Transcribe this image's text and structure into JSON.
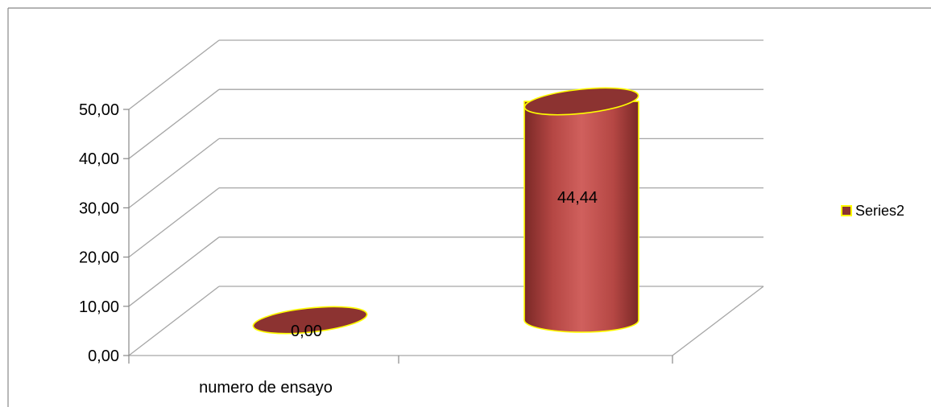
{
  "chart_data": {
    "type": "bar",
    "style": "3d-cylinder",
    "categories": [
      "numero de ensayo",
      ""
    ],
    "series": [
      {
        "name": "Series2",
        "values": [
          0.0,
          44.44
        ],
        "data_labels": [
          "0,00",
          "44,44"
        ]
      }
    ],
    "yticks": [
      "0,00",
      "10,00",
      "20,00",
      "30,00",
      "40,00",
      "50,00"
    ],
    "ylim": [
      0,
      50
    ],
    "grid": true,
    "legend": {
      "position": "right",
      "entries": [
        "Series2"
      ]
    },
    "colors": {
      "bar_fill": "#c0504d",
      "bar_dark": "#7f2a28",
      "bar_top": "#8c3331",
      "bar_outline": "#ffff00",
      "gridline": "#a6a6a6",
      "frame": "#888888"
    }
  }
}
